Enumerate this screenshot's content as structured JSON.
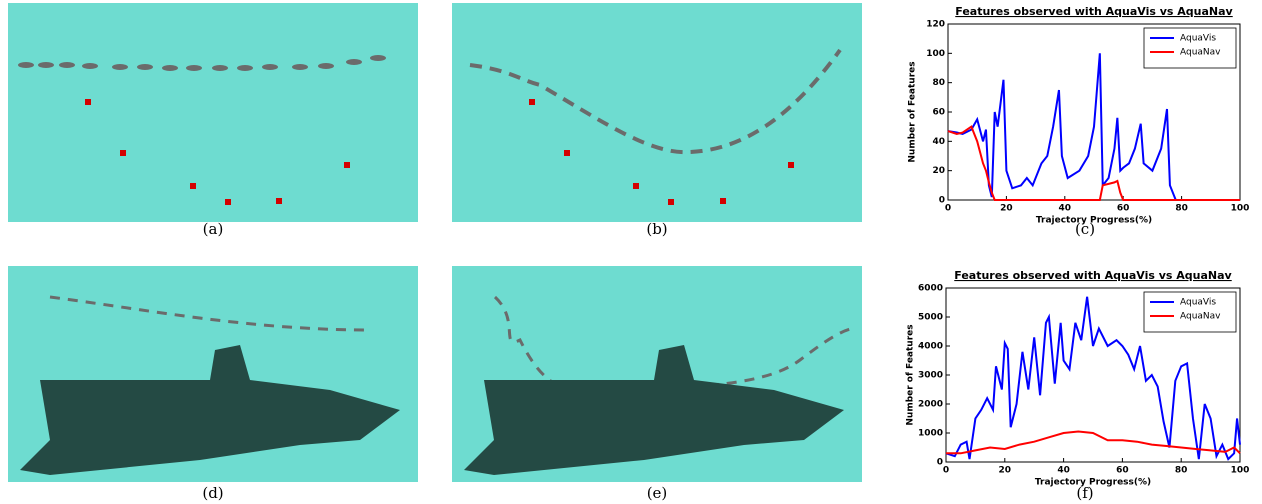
{
  "captions": [
    "(a)",
    "(b)",
    "(c)",
    "(d)",
    "(e)",
    "(f)"
  ],
  "chart_data": [
    {
      "type": "line",
      "title": "Features observed with AquaVis vs AquaNav",
      "x_label": "Trajectory Progress(%)",
      "y_label": "Number of Features",
      "xlim": [
        0,
        100
      ],
      "xticks": [
        0,
        20,
        40,
        60,
        80,
        100
      ],
      "ylim": [
        0,
        120
      ],
      "yticks": [
        0,
        20,
        40,
        60,
        80,
        100,
        120
      ],
      "legend": "upper right",
      "x": [
        0,
        3,
        5,
        8,
        10,
        12,
        13,
        14,
        15,
        16,
        17,
        19,
        20,
        22,
        25,
        27,
        29,
        32,
        34,
        36,
        38,
        39,
        41,
        45,
        48,
        50,
        52,
        53,
        55,
        57,
        58,
        59,
        60,
        62,
        64,
        66,
        67,
        70,
        73,
        75,
        76,
        78,
        100
      ],
      "series": [
        {
          "name": "AquaVis",
          "color": "#0000ff",
          "values": [
            47,
            46,
            45,
            48,
            55,
            40,
            48,
            10,
            2,
            60,
            50,
            82,
            20,
            8,
            10,
            15,
            10,
            25,
            30,
            50,
            75,
            30,
            15,
            20,
            30,
            50,
            100,
            10,
            15,
            35,
            56,
            20,
            22,
            25,
            35,
            52,
            25,
            20,
            35,
            62,
            10,
            0,
            0
          ]
        },
        {
          "name": "AquaNav",
          "color": "#ff0000",
          "values": [
            47,
            45,
            46,
            50,
            40,
            25,
            20,
            12,
            5,
            0,
            0,
            0,
            0,
            0,
            0,
            0,
            0,
            0,
            0,
            0,
            0,
            0,
            0,
            0,
            0,
            0,
            0,
            10,
            11,
            12,
            13,
            5,
            0,
            0,
            0,
            0,
            0,
            0,
            0,
            0,
            0,
            0,
            0
          ]
        }
      ]
    },
    {
      "type": "line",
      "title": "Features observed with AquaVis vs AquaNav",
      "x_label": "Trajectory Progress(%)",
      "y_label": "Number of Features",
      "xlim": [
        0,
        100
      ],
      "xticks": [
        0,
        20,
        40,
        60,
        80,
        100
      ],
      "ylim": [
        0,
        6000
      ],
      "yticks": [
        0,
        1000,
        2000,
        3000,
        4000,
        5000,
        6000
      ],
      "legend": "upper right",
      "series": [
        {
          "name": "AquaVis",
          "color": "#0000ff",
          "x": [
            0,
            3,
            5,
            7,
            8,
            10,
            12,
            14,
            16,
            17,
            19,
            20,
            21,
            22,
            24,
            26,
            28,
            30,
            32,
            34,
            35,
            37,
            39,
            40,
            42,
            44,
            46,
            48,
            50,
            52,
            55,
            58,
            60,
            62,
            64,
            66,
            68,
            70,
            72,
            74,
            76,
            78,
            80,
            82,
            84,
            86,
            88,
            90,
            92,
            94,
            96,
            98,
            99,
            100
          ],
          "values": [
            300,
            200,
            600,
            700,
            100,
            1500,
            1800,
            2200,
            1800,
            3300,
            2500,
            4100,
            3900,
            1200,
            2000,
            3800,
            2500,
            4300,
            2300,
            4800,
            5000,
            2700,
            4800,
            3500,
            3200,
            4800,
            4200,
            5700,
            4000,
            4600,
            4000,
            4200,
            4000,
            3700,
            3200,
            4000,
            2800,
            3000,
            2600,
            1400,
            500,
            2800,
            3300,
            3400,
            1500,
            100,
            2000,
            1500,
            200,
            600,
            100,
            300,
            1500,
            600
          ]
        },
        {
          "name": "AquaNav",
          "color": "#ff0000",
          "x": [
            0,
            5,
            10,
            15,
            20,
            25,
            30,
            35,
            40,
            45,
            50,
            55,
            60,
            65,
            70,
            75,
            80,
            85,
            90,
            95,
            98,
            100
          ],
          "values": [
            300,
            300,
            400,
            500,
            450,
            600,
            700,
            850,
            1000,
            1050,
            1000,
            750,
            750,
            700,
            600,
            550,
            500,
            450,
            400,
            350,
            500,
            300
          ]
        }
      ]
    }
  ]
}
